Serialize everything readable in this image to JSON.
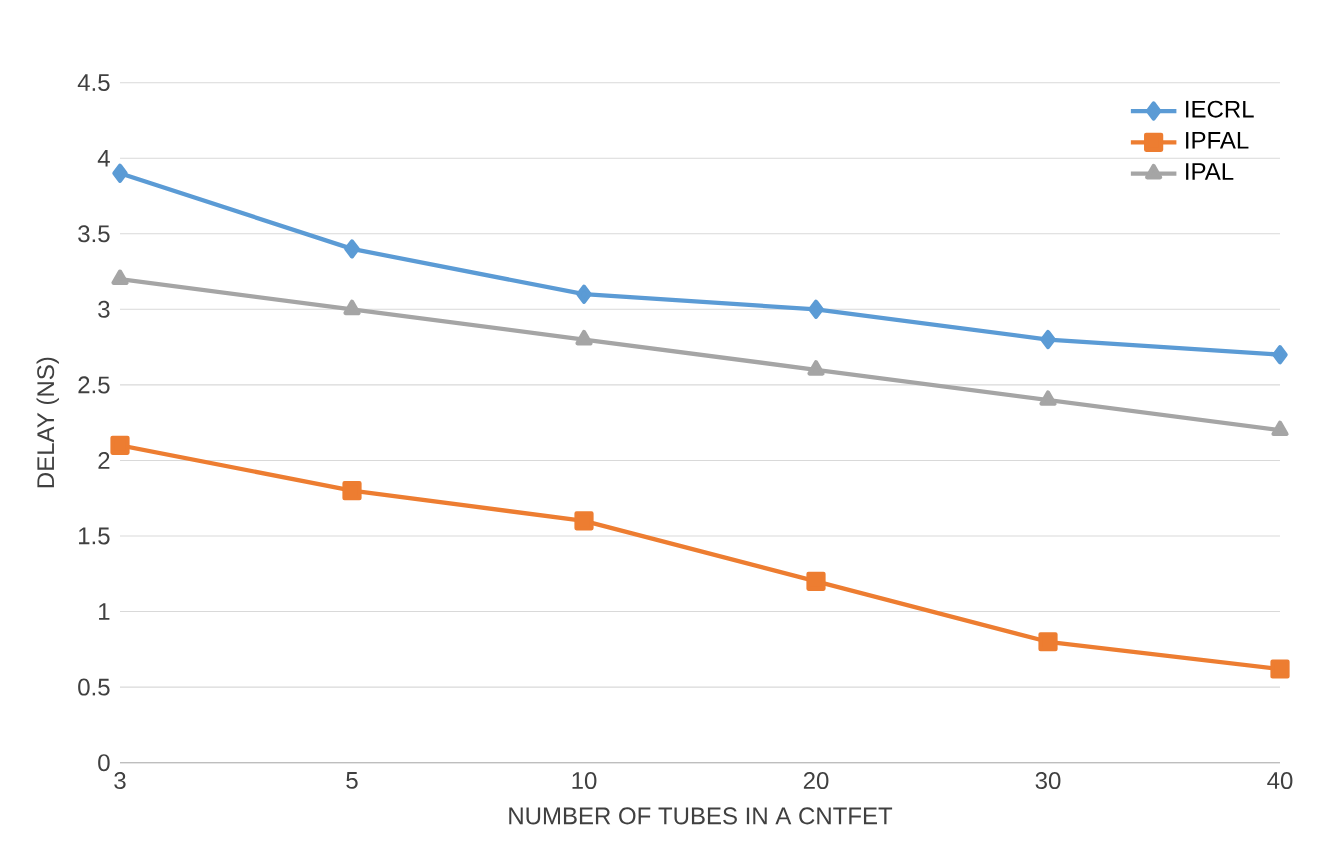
{
  "chart_data": {
    "type": "line",
    "xlabel": "NUMBER OF TUBES IN A CNTFET",
    "ylabel": "DELAY (NS)",
    "categories": [
      "3",
      "5",
      "10",
      "20",
      "30",
      "40"
    ],
    "series": [
      {
        "name": "IECRL",
        "color": "#5b9bd5",
        "marker": "diamond",
        "values": [
          3.9,
          3.4,
          3.1,
          3.0,
          2.8,
          2.7
        ]
      },
      {
        "name": "IPFAL",
        "color": "#ed7d31",
        "marker": "square",
        "values": [
          2.1,
          1.8,
          1.6,
          1.2,
          0.8,
          0.62
        ]
      },
      {
        "name": "IPAL",
        "color": "#a5a5a5",
        "marker": "triangle",
        "values": [
          3.2,
          3.0,
          2.8,
          2.6,
          2.4,
          2.2
        ]
      }
    ],
    "ylim": [
      0,
      4.5
    ],
    "yticks": [
      0,
      0.5,
      1,
      1.5,
      2,
      2.5,
      3,
      3.5,
      4,
      4.5
    ],
    "grid": "y",
    "legend": "top right",
    "line_style": "solid"
  }
}
